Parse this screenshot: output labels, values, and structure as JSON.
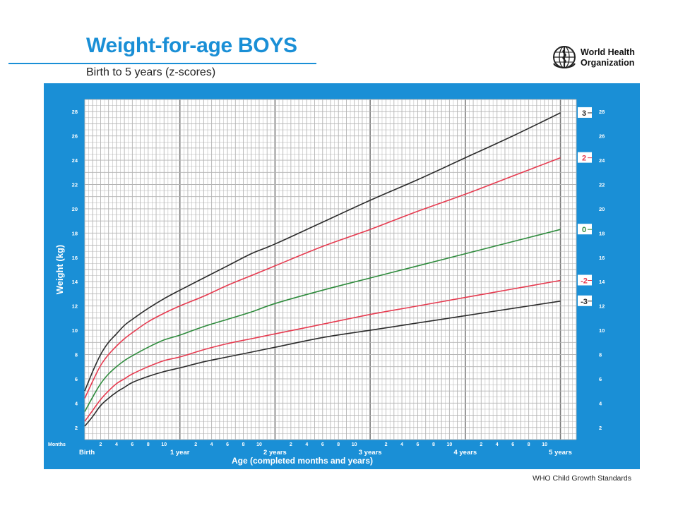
{
  "header": {
    "title": "Weight-for-age BOYS",
    "subtitle": "Birth to 5 years (z-scores)"
  },
  "logo": {
    "icon": "who-emblem-icon",
    "lines": [
      "World Health",
      "Organization"
    ]
  },
  "footer": {
    "text": "WHO Child Growth Standards"
  },
  "colors": {
    "panel": "#1a8fd6",
    "grid_bg": "#ffffff",
    "grid_line": "#b4b4b4",
    "major_line": "#7a7a7a",
    "black_curve": "#2b2b2b",
    "red_curve": "#e63a4f",
    "green_curve": "#2e8b3c"
  },
  "chart_data": {
    "type": "line",
    "xlabel": "Age (completed months and years)",
    "ylabel": "Weight (kg)",
    "xlim": [
      0,
      60
    ],
    "ylim": [
      1,
      29
    ],
    "y_ticks": [
      2,
      4,
      6,
      8,
      10,
      12,
      14,
      16,
      18,
      20,
      22,
      24,
      26,
      28
    ],
    "months_label": "Months",
    "month_tick_labels": [
      "2",
      "4",
      "6",
      "8",
      "10"
    ],
    "x_major_labels": [
      {
        "x": 0,
        "label": "Birth"
      },
      {
        "x": 12,
        "label": "1 year"
      },
      {
        "x": 24,
        "label": "2 years"
      },
      {
        "x": 36,
        "label": "3 years"
      },
      {
        "x": 48,
        "label": "4 years"
      },
      {
        "x": 60,
        "label": "5 years"
      }
    ],
    "grid": true,
    "x": [
      0,
      1,
      2,
      3,
      4,
      5,
      6,
      8,
      10,
      12,
      15,
      18,
      21,
      24,
      30,
      36,
      42,
      48,
      54,
      60
    ],
    "series": [
      {
        "name": "3",
        "color": "#2b2b2b",
        "values": [
          5.0,
          6.6,
          8.0,
          9.0,
          9.7,
          10.4,
          10.9,
          11.8,
          12.6,
          13.3,
          14.3,
          15.3,
          16.3,
          17.1,
          18.9,
          20.7,
          22.4,
          24.2,
          26.0,
          27.9
        ]
      },
      {
        "name": "2",
        "color": "#e63a4f",
        "values": [
          4.4,
          5.8,
          7.1,
          8.0,
          8.7,
          9.3,
          9.8,
          10.7,
          11.4,
          12.0,
          12.8,
          13.7,
          14.5,
          15.3,
          16.9,
          18.3,
          19.8,
          21.2,
          22.7,
          24.2
        ]
      },
      {
        "name": "0",
        "color": "#2e8b3c",
        "values": [
          3.3,
          4.5,
          5.6,
          6.4,
          7.0,
          7.5,
          7.9,
          8.6,
          9.2,
          9.6,
          10.3,
          10.9,
          11.5,
          12.2,
          13.3,
          14.3,
          15.3,
          16.3,
          17.3,
          18.3
        ]
      },
      {
        "name": "-2",
        "color": "#e63a4f",
        "values": [
          2.5,
          3.4,
          4.3,
          5.0,
          5.6,
          6.0,
          6.4,
          7.0,
          7.5,
          7.8,
          8.4,
          8.9,
          9.3,
          9.7,
          10.5,
          11.3,
          12.0,
          12.7,
          13.4,
          14.1
        ]
      },
      {
        "name": "-3",
        "color": "#2b2b2b",
        "values": [
          2.1,
          2.9,
          3.8,
          4.4,
          4.9,
          5.3,
          5.7,
          6.2,
          6.6,
          6.9,
          7.4,
          7.8,
          8.2,
          8.6,
          9.4,
          10.0,
          10.6,
          11.2,
          11.8,
          12.4
        ]
      }
    ]
  }
}
